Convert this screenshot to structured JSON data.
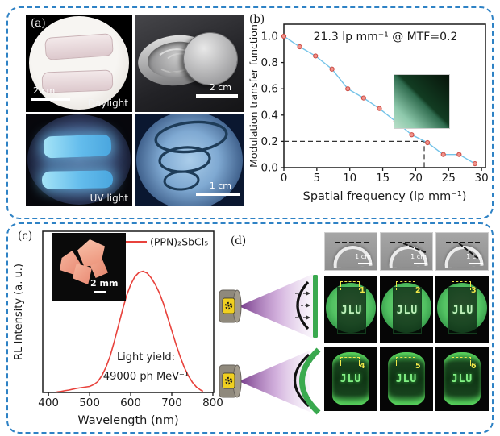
{
  "box_border_color": "#2e82c5",
  "panels": {
    "a": {
      "label": "(a)",
      "daylight": {
        "scalebar_label": "2 cm",
        "caption": "Daylight"
      },
      "tin": {
        "scalebar_label": "2 cm"
      },
      "uv": {
        "caption": "UV light"
      },
      "spiral": {
        "scalebar_label": "1 cm"
      }
    },
    "b": {
      "label": "(b)"
    },
    "c": {
      "label": "(c)",
      "inset_scalebar_label": "2 mm"
    },
    "d": {
      "label": "(d)",
      "sample_text": "JLU",
      "gray_scalebar_label": "1 cm",
      "flat_image_numbers": [
        "1",
        "2",
        "3"
      ],
      "curved_image_numbers": [
        "4",
        "5",
        "6"
      ]
    }
  },
  "chart_data": [
    {
      "type": "line",
      "x": [
        0,
        2.4,
        4.8,
        7.3,
        9.7,
        12.1,
        14.5,
        17.0,
        19.4,
        21.8,
        24.2,
        26.6,
        29.0
      ],
      "y": [
        1.0,
        0.92,
        0.85,
        0.75,
        0.6,
        0.53,
        0.45,
        0.35,
        0.25,
        0.19,
        0.1,
        0.1,
        0.03
      ],
      "xlabel": "Spatial frequency (lp mm⁻¹)",
      "ylabel": "Modulation transfer function",
      "xticks": [
        0,
        5,
        10,
        15,
        20,
        25,
        30
      ],
      "yticks": [
        0.0,
        0.2,
        0.4,
        0.6,
        0.8,
        1.0
      ],
      "xlim": [
        0,
        30
      ],
      "ylim": [
        0,
        1.0
      ],
      "annotation": "21.3 lp mm⁻¹ @ MTF=0.2",
      "crosshair": {
        "x": 21.3,
        "y": 0.2
      },
      "line_color": "#74c3e8",
      "marker": {
        "fill": "#f0938b",
        "edge": "#cc4c44"
      }
    },
    {
      "type": "line",
      "x": [
        420,
        430,
        440,
        450,
        460,
        470,
        480,
        490,
        500,
        510,
        520,
        530,
        540,
        550,
        560,
        570,
        580,
        590,
        600,
        610,
        620,
        630,
        640,
        650,
        660,
        670,
        680,
        690,
        700,
        710,
        720,
        730,
        740,
        750,
        760,
        770,
        776
      ],
      "y": [
        0.004,
        0.008,
        0.015,
        0.02,
        0.028,
        0.035,
        0.04,
        0.045,
        0.05,
        0.065,
        0.09,
        0.14,
        0.21,
        0.3,
        0.42,
        0.55,
        0.68,
        0.8,
        0.89,
        0.955,
        0.99,
        1.0,
        0.985,
        0.945,
        0.89,
        0.82,
        0.73,
        0.62,
        0.51,
        0.4,
        0.3,
        0.21,
        0.14,
        0.085,
        0.045,
        0.02,
        0.01
      ],
      "xlabel": "Wavelength (nm)",
      "ylabel": "RL Intensity (a. u.)",
      "xticks": [
        400,
        500,
        600,
        700,
        800
      ],
      "xlim": [
        390,
        800
      ],
      "ylim": [
        0,
        1.33
      ],
      "legend": "(PPN)₂SbCl₅",
      "annotation_line1": "Light yield:",
      "annotation_line2": "49000 ph MeV⁻¹",
      "line_color": "#e8423c"
    }
  ]
}
